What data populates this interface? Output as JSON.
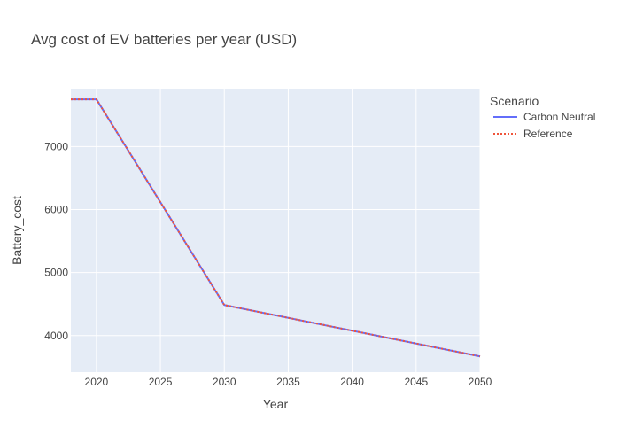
{
  "chart_data": {
    "type": "line",
    "title": "Avg cost of EV batteries per year (USD)",
    "xlabel": "Year",
    "ylabel": "Battery_cost",
    "xlim": [
      2018,
      2050
    ],
    "ylim": [
      3420,
      7920
    ],
    "x_ticks": [
      2020,
      2025,
      2030,
      2035,
      2040,
      2045,
      2050
    ],
    "y_ticks": [
      4000,
      5000,
      6000,
      7000
    ],
    "grid": true,
    "legend": {
      "title": "Scenario",
      "placement": "top-right, outside plot"
    },
    "colors": {
      "plot_bg": "#E5ECF6",
      "grid": "#FFFFFF"
    },
    "series": [
      {
        "name": "Carbon Neutral",
        "color": "#636EFA",
        "dash": "solid",
        "x": [
          2018,
          2020,
          2030,
          2050
        ],
        "y": [
          7750,
          7750,
          4485,
          3670
        ]
      },
      {
        "name": "Reference",
        "color": "#EF553B",
        "dash": "dot",
        "x": [
          2018,
          2020,
          2030,
          2050
        ],
        "y": [
          7750,
          7750,
          4485,
          3670
        ]
      }
    ]
  }
}
